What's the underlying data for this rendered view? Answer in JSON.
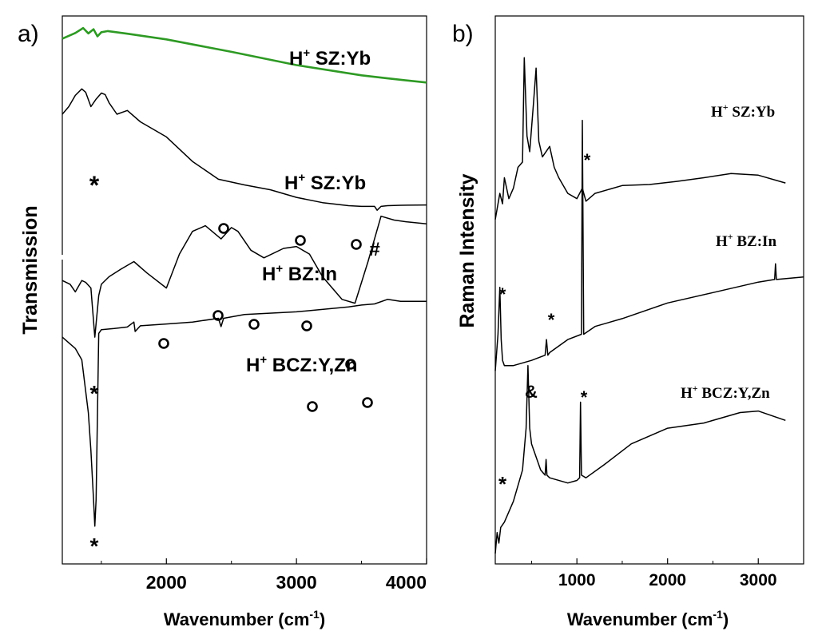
{
  "chart_data": [
    {
      "panel": "a)",
      "type": "line",
      "xlabel": "Wavenumber (cm",
      "xlabel_sup": "-1",
      "xlabel_close": ")",
      "ylabel": "Transmission",
      "xlim": [
        1200,
        4000
      ],
      "xticks": [
        2000,
        3000,
        4000
      ],
      "yticks": false,
      "grid": false,
      "series": [
        {
          "name": "H+ SZ:Yb",
          "color": "#2e9a24",
          "x": [
            1200,
            1300,
            1360,
            1400,
            1440,
            1470,
            1500,
            1550,
            1700,
            2000,
            2500,
            3000,
            3500,
            3700,
            4000
          ],
          "y": [
            0.89,
            0.905,
            0.918,
            0.904,
            0.915,
            0.896,
            0.907,
            0.91,
            0.903,
            0.888,
            0.855,
            0.82,
            0.793,
            0.785,
            0.774
          ]
        },
        {
          "name": "H+ SZ:Yb",
          "color": "#000000",
          "x": [
            1200,
            1250,
            1300,
            1350,
            1380,
            1420,
            1460,
            1500,
            1530,
            1560,
            1620,
            1700,
            1800,
            2000,
            2200,
            2400,
            2600,
            2800,
            3000,
            3200,
            3400,
            3500,
            3600,
            3620,
            3650,
            3700,
            3800,
            4000
          ],
          "y": [
            0.69,
            0.71,
            0.74,
            0.757,
            0.748,
            0.71,
            0.73,
            0.746,
            0.742,
            0.72,
            0.69,
            0.7,
            0.67,
            0.63,
            0.565,
            0.518,
            0.503,
            0.49,
            0.47,
            0.456,
            0.448,
            0.446,
            0.446,
            0.436,
            0.446,
            0.448,
            0.449,
            0.45
          ]
        },
        {
          "name": "H+ BZ:In",
          "color": "#000000",
          "x": [
            1200,
            1260,
            1300,
            1350,
            1380,
            1420,
            1450,
            1480,
            1500,
            1560,
            1650,
            1750,
            1850,
            2000,
            2100,
            2200,
            2300,
            2420,
            2500,
            2550,
            2650,
            2750,
            2900,
            3000,
            3100,
            3200,
            3350,
            3450,
            3550,
            3650,
            3750,
            3850,
            4000
          ],
          "y": [
            0.25,
            0.24,
            0.22,
            0.25,
            0.245,
            0.23,
            0.1,
            0.21,
            0.24,
            0.26,
            0.28,
            0.3,
            0.27,
            0.23,
            0.32,
            0.38,
            0.395,
            0.36,
            0.39,
            0.38,
            0.33,
            0.31,
            0.335,
            0.34,
            0.32,
            0.26,
            0.2,
            0.19,
            0.3,
            0.42,
            0.41,
            0.405,
            0.4
          ]
        },
        {
          "name": "H+ BCZ:Y,Zn",
          "color": "#000000",
          "x": [
            1200,
            1300,
            1350,
            1400,
            1420,
            1440,
            1450,
            1460,
            1480,
            1500,
            1600,
            1700,
            1750,
            1760,
            1800,
            2000,
            2200,
            2400,
            2420,
            2440,
            2600,
            3000,
            3400,
            3500,
            3600,
            3700,
            3800,
            4000
          ],
          "y": [
            0.1,
            0.07,
            0.04,
            -0.1,
            -0.2,
            -0.33,
            -0.4,
            -0.33,
            0.11,
            0.12,
            0.123,
            0.127,
            0.14,
            0.115,
            0.13,
            0.135,
            0.14,
            0.15,
            0.128,
            0.15,
            0.16,
            0.167,
            0.18,
            0.185,
            0.188,
            0.2,
            0.195,
            0.195
          ]
        }
      ],
      "curve_labels": [
        {
          "main": "H",
          "sup": "+",
          "rest": " SZ:Yb"
        },
        {
          "main": "H",
          "sup": "+",
          "rest": " SZ:Yb"
        },
        {
          "main": "H",
          "sup": "+",
          "rest": " BZ:In"
        },
        {
          "main": "H",
          "sup": "+",
          "rest": " BCZ:Y,Zn"
        }
      ],
      "annotations": [
        "*",
        "*",
        "*",
        "o",
        "#"
      ]
    },
    {
      "panel": "b)",
      "type": "line",
      "xlabel": "Wavenumber (cm",
      "xlabel_sup": "-1",
      "xlabel_close": ")",
      "ylabel": "Raman Intensity",
      "xlim": [
        100,
        3500
      ],
      "xticks": [
        1000,
        2000,
        3000
      ],
      "yticks": false,
      "grid": false,
      "series": [
        {
          "name": "H+ SZ:Yb",
          "color": "#000000",
          "x": [
            100,
            150,
            180,
            200,
            250,
            300,
            350,
            400,
            420,
            450,
            480,
            520,
            550,
            580,
            620,
            700,
            750,
            800,
            900,
            1000,
            1060,
            1100,
            1200,
            1500,
            1800,
            2100,
            2400,
            2700,
            3000,
            3300
          ],
          "y": [
            0.66,
            0.71,
            0.69,
            0.74,
            0.7,
            0.72,
            0.76,
            0.77,
            0.97,
            0.82,
            0.79,
            0.88,
            0.95,
            0.81,
            0.78,
            0.8,
            0.76,
            0.74,
            0.71,
            0.7,
            0.72,
            0.695,
            0.71,
            0.725,
            0.727,
            0.733,
            0.74,
            0.748,
            0.745,
            0.73
          ]
        },
        {
          "name": "H+ BZ:In",
          "color": "#000000",
          "x": [
            100,
            130,
            150,
            165,
            180,
            200,
            300,
            500,
            650,
            665,
            680,
            700,
            900,
            1050,
            1060,
            1075,
            1200,
            1500,
            2000,
            2500,
            3000,
            3180,
            3190,
            3200,
            3500
          ],
          "y": [
            0.37,
            0.44,
            0.53,
            0.43,
            0.39,
            0.38,
            0.38,
            0.39,
            0.4,
            0.43,
            0.4,
            0.405,
            0.43,
            0.44,
            0.85,
            0.44,
            0.455,
            0.47,
            0.5,
            0.52,
            0.54,
            0.545,
            0.575,
            0.545,
            0.55
          ]
        },
        {
          "name": "H+ BCZ:Y,Zn",
          "color": "#000000",
          "x": [
            100,
            120,
            140,
            160,
            200,
            300,
            400,
            440,
            460,
            480,
            500,
            600,
            650,
            660,
            670,
            700,
            900,
            1000,
            1030,
            1040,
            1050,
            1100,
            1300,
            1600,
            2000,
            2400,
            2800,
            3000,
            3300
          ],
          "y": [
            0.02,
            0.06,
            0.04,
            0.07,
            0.08,
            0.12,
            0.18,
            0.26,
            0.38,
            0.26,
            0.23,
            0.18,
            0.17,
            0.2,
            0.17,
            0.165,
            0.155,
            0.16,
            0.165,
            0.31,
            0.17,
            0.165,
            0.19,
            0.23,
            0.26,
            0.27,
            0.29,
            0.293,
            0.275
          ]
        }
      ],
      "curve_labels": [
        {
          "main": "H",
          "sup": "+",
          "rest": " SZ:Yb"
        },
        {
          "main": "H",
          "sup": "+",
          "rest": " BZ:In"
        },
        {
          "main": "H",
          "sup": "+",
          "rest": " BCZ:Y,Zn"
        }
      ],
      "annotations": [
        "*",
        "*",
        "*",
        "*",
        "&"
      ]
    }
  ]
}
